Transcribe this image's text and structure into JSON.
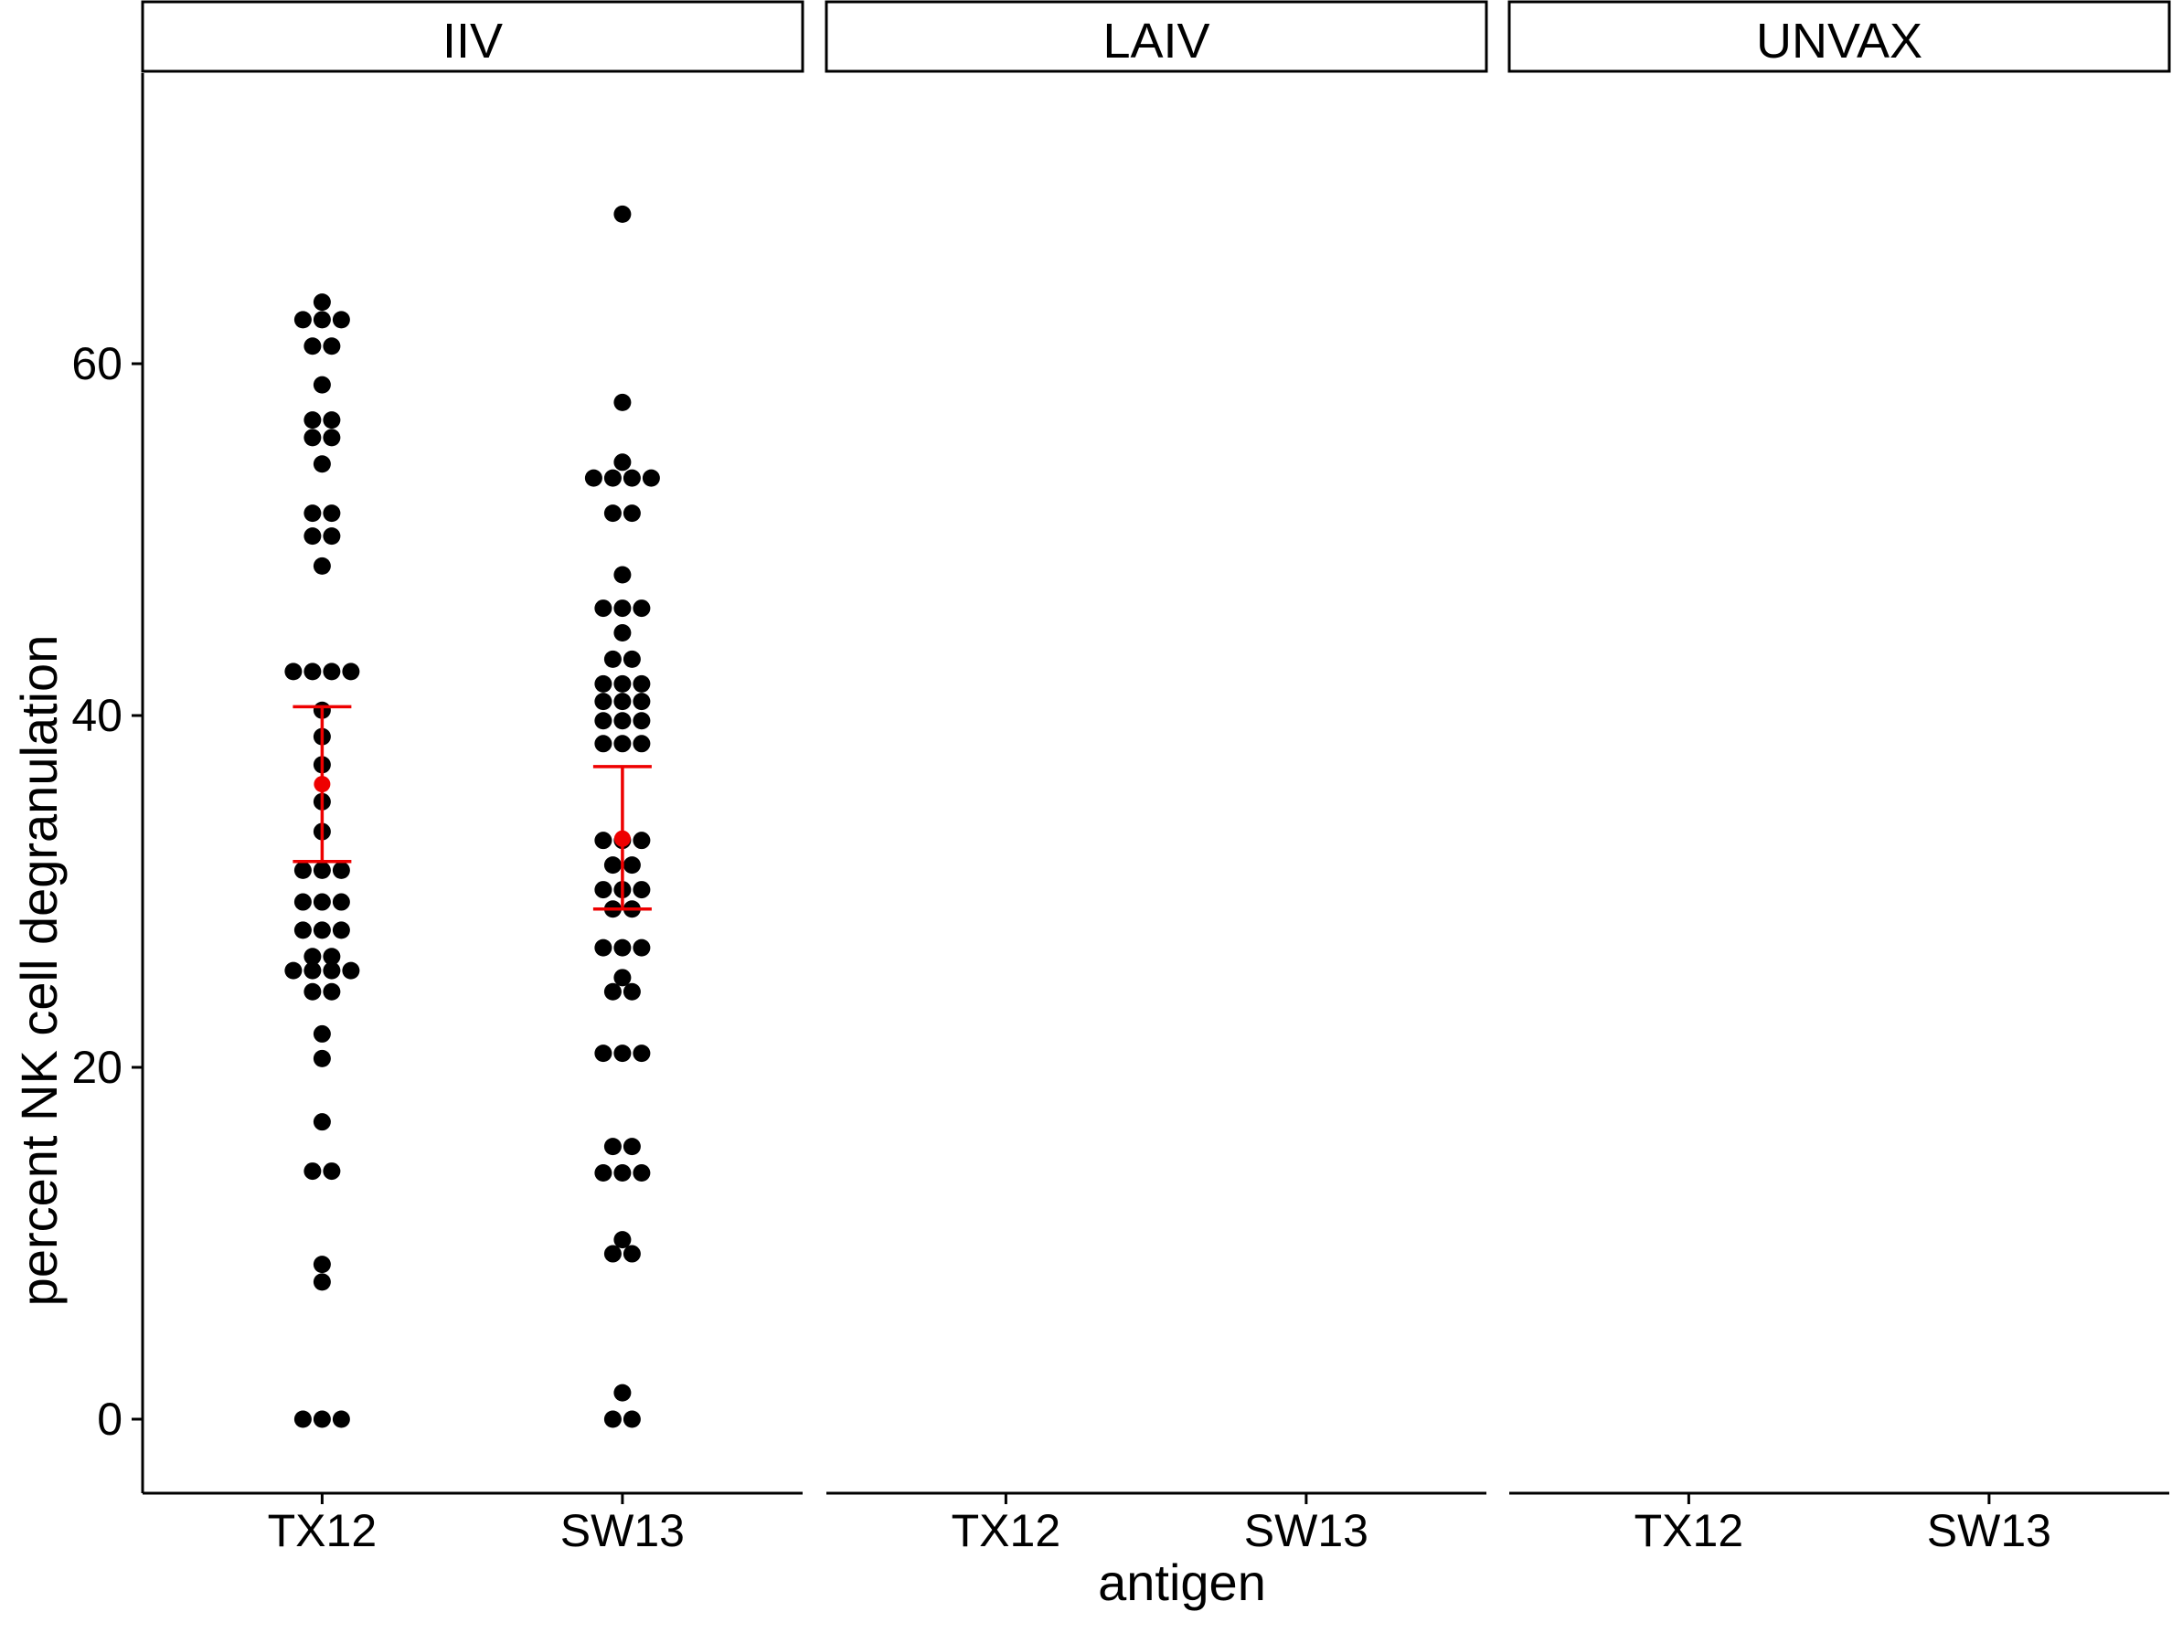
{
  "chart_data": {
    "type": "scatter",
    "style": "faceted dot plot (beeswarm) with mean and error bars",
    "xlabel": "antigen",
    "ylabel": "percent NK cell degranulation",
    "ylim": [
      -4,
      76
    ],
    "yticks": [
      0,
      20,
      40,
      60
    ],
    "categories": [
      "TX12",
      "SW13"
    ],
    "grid": false,
    "legend": "none",
    "colors": {
      "points": "#000000",
      "summary": "#ee0000"
    },
    "facets": [
      {
        "label": "IIV",
        "groups": [
          {
            "category": "TX12",
            "values": [
              63.5,
              62.5,
              62.5,
              62.5,
              61.0,
              61.0,
              58.8,
              56.8,
              56.8,
              55.8,
              55.8,
              54.3,
              51.5,
              51.5,
              50.2,
              50.2,
              48.5,
              42.5,
              42.5,
              42.5,
              42.5,
              40.3,
              38.8,
              37.2,
              35.1,
              33.4,
              31.2,
              31.2,
              31.2,
              29.4,
              29.4,
              29.4,
              27.8,
              27.8,
              27.8,
              26.3,
              26.3,
              25.5,
              25.5,
              25.5,
              25.5,
              24.3,
              24.3,
              21.9,
              20.5,
              16.9,
              14.1,
              14.1,
              8.8,
              7.8,
              0.0,
              0.0,
              0.0
            ],
            "mean": 36.1,
            "ci": [
              31.7,
              40.5
            ]
          },
          {
            "category": "SW13",
            "values": [
              68.5,
              57.8,
              54.4,
              53.5,
              53.5,
              53.5,
              53.5,
              51.5,
              51.5,
              48.0,
              46.1,
              46.1,
              46.1,
              44.7,
              43.2,
              43.2,
              41.8,
              41.8,
              41.8,
              40.8,
              40.8,
              40.8,
              39.7,
              39.7,
              39.7,
              38.4,
              38.4,
              38.4,
              32.9,
              32.9,
              32.9,
              31.5,
              31.5,
              30.1,
              30.1,
              30.1,
              29.0,
              29.0,
              26.8,
              26.8,
              26.8,
              25.1,
              24.3,
              24.3,
              20.8,
              20.8,
              20.8,
              15.5,
              15.5,
              14.0,
              14.0,
              14.0,
              10.2,
              9.4,
              9.4,
              1.5,
              0.0,
              0.0
            ],
            "mean": 33.0,
            "ci": [
              29.0,
              37.1
            ]
          }
        ]
      },
      {
        "label": "LAIV",
        "groups": [
          {
            "category": "TX12",
            "values": []
          },
          {
            "category": "SW13",
            "values": []
          }
        ]
      },
      {
        "label": "UNVAX",
        "groups": [
          {
            "category": "TX12",
            "values": []
          },
          {
            "category": "SW13",
            "values": []
          }
        ]
      }
    ]
  }
}
